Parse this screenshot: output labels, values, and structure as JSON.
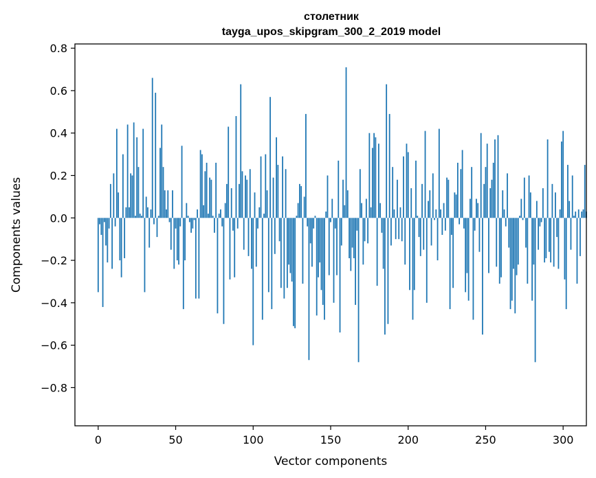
{
  "chart_data": {
    "type": "bar",
    "title": "столетник",
    "subtitle": "tayga_upos_skipgram_300_2_2019 model",
    "xlabel": "Vector components",
    "ylabel": "Components values",
    "xlim": [
      -15,
      315
    ],
    "ylim": [
      -0.98,
      0.82
    ],
    "xticks": [
      0,
      50,
      100,
      150,
      200,
      250,
      300
    ],
    "xtick_labels": [
      "0",
      "50",
      "100",
      "150",
      "200",
      "250",
      "300"
    ],
    "yticks": [
      -0.8,
      -0.6,
      -0.4,
      -0.2,
      0.0,
      0.2,
      0.4,
      0.6,
      0.8
    ],
    "ytick_labels": [
      "−0.8",
      "−0.6",
      "−0.4",
      "−0.2",
      "0.0",
      "0.2",
      "0.4",
      "0.6",
      "0.8"
    ],
    "bar_color": "#1f77b4",
    "values": [
      -0.35,
      -0.03,
      -0.08,
      -0.42,
      -0.02,
      -0.13,
      -0.21,
      -0.05,
      0.16,
      -0.24,
      0.21,
      -0.04,
      0.42,
      0.12,
      -0.2,
      -0.28,
      0.3,
      -0.19,
      0.05,
      0.44,
      0.05,
      0.21,
      0.2,
      0.45,
      0.01,
      0.38,
      0.24,
      0.02,
      0.01,
      0.42,
      -0.35,
      0.1,
      0.05,
      -0.14,
      0.04,
      0.66,
      -0.03,
      0.59,
      -0.09,
      0.01,
      0.33,
      0.44,
      0.24,
      0.13,
      0.04,
      0.13,
      -0.02,
      -0.15,
      0.13,
      -0.24,
      -0.05,
      -0.2,
      -0.22,
      -0.04,
      0.34,
      -0.43,
      -0.2,
      0.07,
      0.01,
      -0.02,
      -0.07,
      -0.05,
      -0.01,
      -0.38,
      0.04,
      -0.38,
      0.32,
      0.3,
      0.06,
      0.22,
      0.26,
      0.02,
      0.19,
      0.18,
      0.01,
      -0.07,
      0.26,
      -0.45,
      0.02,
      0.04,
      -0.04,
      -0.5,
      0.07,
      0.16,
      0.43,
      -0.29,
      0.14,
      -0.06,
      -0.28,
      0.48,
      -0.05,
      0.16,
      0.63,
      0.22,
      -0.15,
      0.2,
      0.18,
      -0.18,
      0.23,
      -0.24,
      -0.6,
      0.12,
      -0.23,
      -0.05,
      0.05,
      0.29,
      -0.48,
      0.02,
      0.3,
      0.13,
      -0.35,
      0.57,
      -0.43,
      0.19,
      -0.17,
      0.38,
      0.25,
      -0.11,
      -0.33,
      0.29,
      -0.38,
      0.23,
      -0.33,
      -0.22,
      -0.26,
      -0.3,
      -0.51,
      -0.52,
      0.01,
      0.07,
      0.16,
      0.15,
      -0.31,
      0.1,
      0.49,
      -0.04,
      -0.67,
      -0.12,
      -0.23,
      -0.05,
      0.01,
      -0.46,
      -0.28,
      -0.21,
      -0.34,
      -0.41,
      -0.48,
      0.03,
      0.2,
      -0.27,
      -0.02,
      0.09,
      -0.4,
      -0.05,
      -0.27,
      0.27,
      -0.54,
      -0.13,
      0.18,
      0.06,
      0.71,
      0.13,
      -0.19,
      -0.25,
      -0.14,
      -0.19,
      -0.41,
      -0.06,
      -0.68,
      0.23,
      0.07,
      -0.22,
      -0.11,
      0.09,
      -0.12,
      0.4,
      0.05,
      0.33,
      0.4,
      0.38,
      -0.32,
      0.35,
      0.07,
      -0.07,
      -0.24,
      -0.55,
      0.63,
      -0.5,
      0.49,
      -0.13,
      0.24,
      0.04,
      -0.1,
      0.18,
      -0.1,
      0.05,
      -0.11,
      0.29,
      -0.22,
      0.35,
      0.31,
      -0.34,
      0.14,
      -0.48,
      -0.34,
      0.27,
      0.01,
      -0.09,
      -0.18,
      0.16,
      -0.15,
      0.41,
      -0.4,
      0.08,
      0.13,
      -0.13,
      0.21,
      -0.01,
      0.04,
      -0.2,
      0.42,
      0.04,
      -0.08,
      0.07,
      -0.06,
      0.19,
      0.18,
      -0.43,
      -0.08,
      -0.33,
      0.12,
      0.11,
      0.26,
      -0.03,
      0.23,
      0.32,
      -0.05,
      -0.35,
      -0.26,
      -0.39,
      0.09,
      0.24,
      -0.48,
      -0.06,
      0.09,
      0.07,
      -0.16,
      0.4,
      -0.55,
      0.16,
      0.24,
      0.35,
      -0.26,
      0.14,
      0.18,
      0.26,
      0.37,
      -0.23,
      0.39,
      -0.31,
      -0.28,
      0.13,
      0.04,
      -0.04,
      0.21,
      -0.14,
      -0.43,
      -0.39,
      -0.24,
      -0.45,
      -0.27,
      -0.22,
      0.01,
      0.09,
      -0.01,
      0.19,
      -0.14,
      -0.31,
      0.2,
      0.12,
      -0.39,
      -0.22,
      -0.68,
      0.08,
      -0.15,
      -0.04,
      -0.02,
      0.14,
      -0.21,
      -0.19,
      0.37,
      -0.16,
      -0.21,
      0.16,
      -0.23,
      0.12,
      -0.09,
      -0.24,
      0.04,
      0.36,
      0.41,
      -0.29,
      -0.43,
      0.25,
      0.08,
      -0.15,
      0.2,
      0.01,
      0.03,
      -0.31,
      0.04,
      -0.18,
      0.03,
      0.04,
      0.25,
      0.03
    ]
  }
}
